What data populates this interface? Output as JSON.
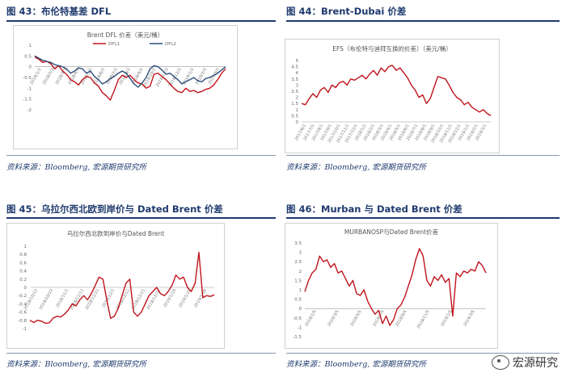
{
  "figures": [
    {
      "id": "fig43",
      "heading": "图 43：布伦特基差 DFL",
      "source": "资料来源：Bloomberg, 宏源期货研究所",
      "chart_data": {
        "type": "line",
        "title": "Brent DFL  价差（美元/桶）",
        "legend": [
          "DFL1",
          "DFL2"
        ],
        "legend_position": "top",
        "ylim": [
          -2,
          1
        ],
        "yticks": [
          "1",
          "0.5",
          "0",
          "-0.5",
          "-1",
          "-1.5",
          "-2"
        ],
        "x_tick_labels": [
          "2018/1/3",
          "2018/2/3",
          "2018/3/3",
          "2018/4/3",
          "2018/5/3",
          "2018/6/3",
          "2018/7/3",
          "2018/8/3",
          "2018/9/3",
          "2018/10/3",
          "2018/11/3",
          "2018/12/3",
          "2019/1/3",
          "2019/2/3",
          "2019/3/3"
        ],
        "series": [
          {
            "name": "DFL1",
            "color": "#c0141b",
            "values": [
              0.45,
              0.35,
              0.2,
              0.25,
              0.15,
              -0.1,
              0.05,
              -0.2,
              -0.35,
              -0.6,
              -0.7,
              -0.85,
              -0.6,
              -0.45,
              -0.5,
              -0.75,
              -0.9,
              -1.2,
              -1.35,
              -1.55,
              -1.1,
              -0.6,
              -0.4,
              -0.5,
              -0.4,
              -0.6,
              -0.75,
              -0.8,
              -1.0,
              -0.9,
              -0.35,
              -0.3,
              -0.45,
              -0.6,
              -0.8,
              -1.0,
              -1.15,
              -1.2,
              -1.0,
              -1.15,
              -1.1,
              -1.2,
              -1.15,
              -1.05,
              -1.0,
              -0.85,
              -0.6,
              -0.3,
              -0.1
            ]
          },
          {
            "name": "DFL2",
            "color": "#2e4d7a",
            "values": [
              0.5,
              0.4,
              0.3,
              0.25,
              0.2,
              0.1,
              0.05,
              0.0,
              -0.1,
              -0.3,
              -0.2,
              -0.05,
              -0.1,
              -0.3,
              -0.2,
              -0.45,
              -0.6,
              -0.8,
              -0.7,
              -0.55,
              -0.45,
              -0.3,
              -0.2,
              -0.3,
              -0.55,
              -0.8,
              -0.95,
              -0.75,
              -0.5,
              -0.1,
              0.05,
              0.0,
              -0.15,
              -0.35,
              -0.3,
              -0.45,
              -0.6,
              -0.8,
              -0.7,
              -0.6,
              -0.5,
              -0.65,
              -0.7,
              -0.55,
              -0.5,
              -0.4,
              -0.3,
              -0.15,
              0.0
            ]
          }
        ]
      }
    },
    {
      "id": "fig44",
      "heading": "图 44：Brent-Dubai 价差",
      "source": "资料来源：Bloomberg, 宏源期货研究所",
      "chart_data": {
        "type": "line",
        "title": "EFS（布伦特与迪拜互换的价差）（美元/桶）",
        "ylim": [
          0,
          5
        ],
        "yticks": [
          "5",
          "4.5",
          "4",
          "3.5",
          "3",
          "2.5",
          "2",
          "1.5",
          "1",
          "0.5",
          "0"
        ],
        "x_tick_labels": [
          "2017/6/1",
          "2017/7/1",
          "2017/8/1",
          "2017/9/1",
          "2017/10/1",
          "2017/11/1",
          "2017/12/1",
          "2018/1/1",
          "2018/2/1",
          "2018/3/1",
          "2018/4/1",
          "2018/5/1",
          "2018/6/1",
          "2018/7/1",
          "2018/8/1",
          "2018/9/1",
          "2018/10/1",
          "2018/11/1",
          "2018/12/1",
          "2019/1/1",
          "2019/2/1",
          "2019/3/1"
        ],
        "series": [
          {
            "name": "EFS",
            "color": "#c0141b",
            "values": [
              1.5,
              1.4,
              1.9,
              2.3,
              2.0,
              2.6,
              2.8,
              2.4,
              3.0,
              2.8,
              3.2,
              3.3,
              3.0,
              3.5,
              3.4,
              3.6,
              3.8,
              3.5,
              3.9,
              4.2,
              3.8,
              4.4,
              4.1,
              4.5,
              4.6,
              4.2,
              4.4,
              4.0,
              3.6,
              3.0,
              2.6,
              2.0,
              2.2,
              1.5,
              1.9,
              2.8,
              3.7,
              3.6,
              3.5,
              3.0,
              2.4,
              2.0,
              1.8,
              1.4,
              1.6,
              1.2,
              1.0,
              0.8,
              1.0,
              0.7,
              0.5
            ]
          }
        ]
      }
    },
    {
      "id": "fig45",
      "heading": "图 45：乌拉尔西北欧到岸价与 Dated Brent 价差",
      "source": "资料来源：Bloomberg, 宏源期货研究所",
      "chart_data": {
        "type": "line",
        "title": "乌拉尔西北欧到岸价与Dated Brent",
        "ylim": [
          -1,
          1
        ],
        "yticks": [
          "1",
          "0.8",
          "0.6",
          "0.4",
          "0.2",
          "0",
          "-0.2",
          "-0.4",
          "-0.6",
          "-0.8",
          "-1"
        ],
        "x_tick_labels": [
          "2018/10/12",
          "2018/10/22",
          "2018/11/1",
          "2018/11/11",
          "2018/11/21",
          "2018/12/1",
          "2018/12/11",
          "2018/12/21",
          "2018/12/31",
          "2019/1/10",
          "2019/1/20",
          "2019/1/30"
        ],
        "series": [
          {
            "name": "Urals-Dated Brent",
            "color": "#c0141b",
            "values": [
              -0.8,
              -0.85,
              -0.8,
              -0.82,
              -0.87,
              -0.86,
              -0.75,
              -0.7,
              -0.72,
              -0.65,
              -0.55,
              -0.4,
              -0.45,
              -0.3,
              -0.2,
              -0.3,
              -0.15,
              0.05,
              0.25,
              0.2,
              -0.3,
              -0.75,
              -0.7,
              -0.5,
              -0.2,
              0.1,
              0.2,
              -0.6,
              -0.7,
              -0.6,
              -0.4,
              -0.2,
              -0.1,
              0.0,
              -0.15,
              -0.2,
              -0.1,
              0.05,
              0.3,
              0.2,
              0.25,
              0.0,
              -0.1,
              0.1,
              0.85,
              -0.25,
              -0.2,
              -0.22,
              -0.18
            ]
          }
        ]
      }
    },
    {
      "id": "fig46",
      "heading": "图 46：Murban 与 Dated Brent 价差",
      "source": "资料来源：Bloomberg, 宏源期货研究所",
      "chart_data": {
        "type": "line",
        "title": "MURBANOSP与Dated Brent价差",
        "ylim": [
          -1.5,
          3.5
        ],
        "yticks": [
          "3.5",
          "3",
          "2.5",
          "2",
          "1.5",
          "1",
          "0.5",
          "0",
          "-0.5",
          "-1",
          "-1.5"
        ],
        "x_tick_labels": [
          "2018/1/5",
          "2018/3/5",
          "2018/5/5",
          "2018/7/5",
          "2018/9/5",
          "2018/11/5",
          "2019/1/5",
          "2019/3/5"
        ],
        "series": [
          {
            "name": "Murban-Dated Brent",
            "color": "#c0141b",
            "values": [
              0.9,
              1.5,
              1.9,
              2.1,
              2.8,
              2.5,
              2.6,
              2.2,
              2.4,
              1.9,
              2.0,
              1.6,
              1.2,
              1.5,
              0.8,
              0.7,
              1.0,
              0.4,
              0.0,
              -0.3,
              -0.1,
              -0.8,
              -0.4,
              -0.9,
              -0.6,
              0.0,
              0.2,
              0.6,
              1.2,
              1.8,
              2.6,
              3.2,
              2.8,
              1.5,
              1.2,
              1.7,
              1.5,
              1.8,
              1.4,
              1.6,
              -0.4,
              1.9,
              1.7,
              2.0,
              1.9,
              2.1,
              2.0,
              2.5,
              2.3,
              1.9
            ]
          }
        ]
      }
    }
  ],
  "watermark": "宏源研究"
}
